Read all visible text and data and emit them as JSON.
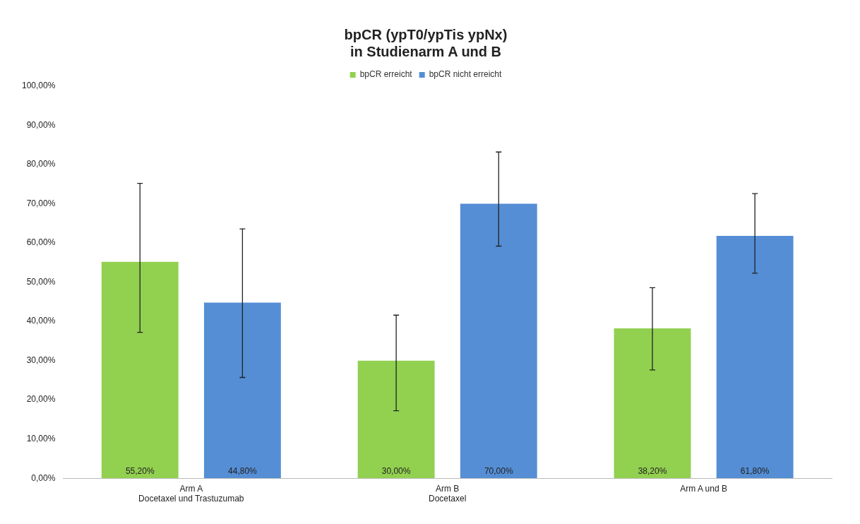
{
  "chart_data": {
    "type": "bar",
    "title": "bpCR (ypT0/ypTis ypNx)\nin Studienarm A und B",
    "categories": [
      "Arm A\nDocetaxel und Trastuzumab",
      "Arm B\nDocetaxel",
      "Arm A und B"
    ],
    "series": [
      {
        "name": "bpCR erreicht",
        "color": "#92d050",
        "values": [
          55.2,
          30.0,
          38.2
        ],
        "errors": [
          [
            37.2,
            75.2
          ],
          [
            17.2,
            41.6
          ],
          [
            27.6,
            48.6
          ]
        ],
        "value_labels": [
          "55,20%",
          "30,00%",
          "38,20%"
        ]
      },
      {
        "name": "bpCR nicht erreicht",
        "color": "#558ed5",
        "values": [
          44.8,
          70.0,
          61.8
        ],
        "errors": [
          [
            25.7,
            63.6
          ],
          [
            59.2,
            83.2
          ],
          [
            52.3,
            72.6
          ]
        ],
        "value_labels": [
          "44,80%",
          "70,00%",
          "61,80%"
        ]
      }
    ],
    "ylim": [
      0,
      100
    ],
    "yticks": [
      {
        "value": 0,
        "label": "0,00%"
      },
      {
        "value": 10,
        "label": "10,00%"
      },
      {
        "value": 20,
        "label": "20,00%"
      },
      {
        "value": 30,
        "label": "30,00%"
      },
      {
        "value": 40,
        "label": "40,00%"
      },
      {
        "value": 50,
        "label": "50,00%"
      },
      {
        "value": 60,
        "label": "60,00%"
      },
      {
        "value": 70,
        "label": "70,00%"
      },
      {
        "value": 80,
        "label": "80,00%"
      },
      {
        "value": 90,
        "label": "90,00%"
      },
      {
        "value": 100,
        "label": "100,00%"
      }
    ],
    "grid": false,
    "legend": "top"
  }
}
